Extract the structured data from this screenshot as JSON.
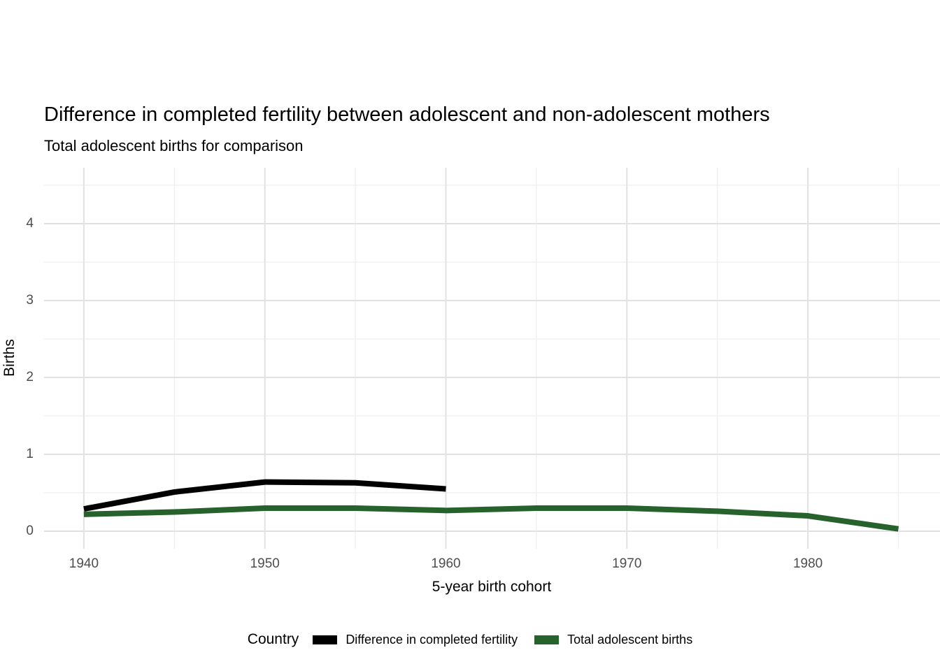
{
  "title": "Difference in completed fertility between adolescent and non-adolescent mothers",
  "subtitle": "Total adolescent births for comparison",
  "axes": {
    "x_label": "5-year birth cohort",
    "y_label": "Births"
  },
  "legend": {
    "title": "Country",
    "items": [
      {
        "label": "Difference in completed fertility",
        "color": "#000000"
      },
      {
        "label": "Total adolescent births",
        "color": "#27612c"
      }
    ]
  },
  "chart_data": {
    "type": "line",
    "title": "Difference in completed fertility between adolescent and non-adolescent mothers",
    "subtitle": "Total adolescent births for comparison",
    "xlabel": "5-year birth cohort",
    "ylabel": "Births",
    "xlim": [
      1937.8,
      1987.3
    ],
    "ylim": [
      -0.227,
      4.727
    ],
    "x_tick_values": [
      1940,
      1950,
      1960,
      1970,
      1980
    ],
    "x_tick_labels": [
      "1940",
      "1950",
      "1960",
      "1970",
      "1980"
    ],
    "x_minor_values": [
      1945,
      1955,
      1965,
      1975,
      1985
    ],
    "y_tick_values": [
      0,
      1,
      2,
      3,
      4
    ],
    "y_tick_labels": [
      "0",
      "1",
      "2",
      "3",
      "4"
    ],
    "y_minor_values": [
      0.5,
      1.5,
      2.5,
      3.5,
      4.5
    ],
    "grid": {
      "major_color": "#e2e2e2",
      "minor_color": "#eeeeee"
    },
    "line_width": 8,
    "series": [
      {
        "name": "Difference in completed fertility",
        "color": "#000000",
        "x": [
          1940,
          1945,
          1950,
          1955,
          1960
        ],
        "y": [
          0.29,
          0.51,
          0.64,
          0.63,
          0.55
        ]
      },
      {
        "name": "Total adolescent births",
        "color": "#27612c",
        "x": [
          1940,
          1945,
          1950,
          1955,
          1960,
          1965,
          1970,
          1975,
          1980,
          1985
        ],
        "y": [
          0.22,
          0.25,
          0.3,
          0.3,
          0.27,
          0.3,
          0.3,
          0.26,
          0.2,
          0.03
        ]
      }
    ],
    "legend_position": "bottom",
    "legend_title": "Country"
  }
}
